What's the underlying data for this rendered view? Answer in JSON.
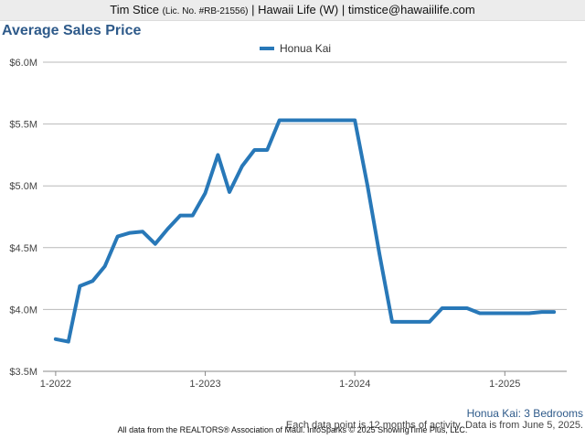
{
  "header": {
    "agent_name": "Tim Stice",
    "license": "(Lic. No. #RB-21556)",
    "rest": "| Hawaii Life (W) | timstice@hawaiilife.com"
  },
  "chart_title": "Average Sales Price",
  "chart_data": {
    "type": "line",
    "title": "Average Sales Price",
    "xlabel": "",
    "ylabel": "",
    "ylim": [
      3.5,
      6.0
    ],
    "y_unit": "$M",
    "y_ticks": [
      {
        "value": 6.0,
        "label": "$6.0M"
      },
      {
        "value": 5.5,
        "label": "$5.5M"
      },
      {
        "value": 5.0,
        "label": "$5.0M"
      },
      {
        "value": 4.5,
        "label": "$4.5M"
      },
      {
        "value": 4.0,
        "label": "$4.0M"
      },
      {
        "value": 3.5,
        "label": "$3.5M"
      }
    ],
    "x_ticks": [
      {
        "value": "2022-01",
        "label": "1-2022"
      },
      {
        "value": "2023-01",
        "label": "1-2023"
      },
      {
        "value": "2024-01",
        "label": "1-2024"
      },
      {
        "value": "2025-01",
        "label": "1-2025"
      }
    ],
    "grid": "horizontal",
    "legend_position": "top-center",
    "series": [
      {
        "name": "Honua Kai",
        "color": "#2878b8",
        "x": [
          "2022-01",
          "2022-02",
          "2022-03",
          "2022-04",
          "2022-05",
          "2022-06",
          "2022-07",
          "2022-08",
          "2022-09",
          "2022-10",
          "2022-11",
          "2022-12",
          "2023-01",
          "2023-02",
          "2023-03",
          "2023-04",
          "2023-05",
          "2023-06",
          "2023-07",
          "2023-08",
          "2023-09",
          "2023-10",
          "2023-11",
          "2023-12",
          "2024-01",
          "2024-02",
          "2024-03",
          "2024-04",
          "2024-05",
          "2024-06",
          "2024-07",
          "2024-08",
          "2024-09",
          "2024-10",
          "2024-11",
          "2024-12",
          "2025-01",
          "2025-02",
          "2025-03",
          "2025-04",
          "2025-05"
        ],
        "values": [
          3.76,
          3.74,
          4.19,
          4.23,
          4.35,
          4.59,
          4.62,
          4.63,
          4.53,
          4.65,
          4.76,
          4.76,
          4.94,
          5.25,
          4.95,
          5.16,
          5.29,
          5.29,
          5.53,
          5.53,
          5.53,
          5.53,
          5.53,
          5.53,
          5.53,
          5.0,
          4.45,
          3.9,
          3.9,
          3.9,
          3.9,
          4.01,
          4.01,
          4.01,
          3.97,
          3.97,
          3.97,
          3.97,
          3.97,
          3.98,
          3.98
        ]
      }
    ]
  },
  "footer": {
    "series_label": "Honua Kai: 3 Bedrooms",
    "note": "Each data point is 12 months of activity. Data is from June 5, 2025.",
    "credit": "All data from the REALTORS® Association of Maui. InfoSparks © 2025 ShowingTime Plus, LLC."
  }
}
